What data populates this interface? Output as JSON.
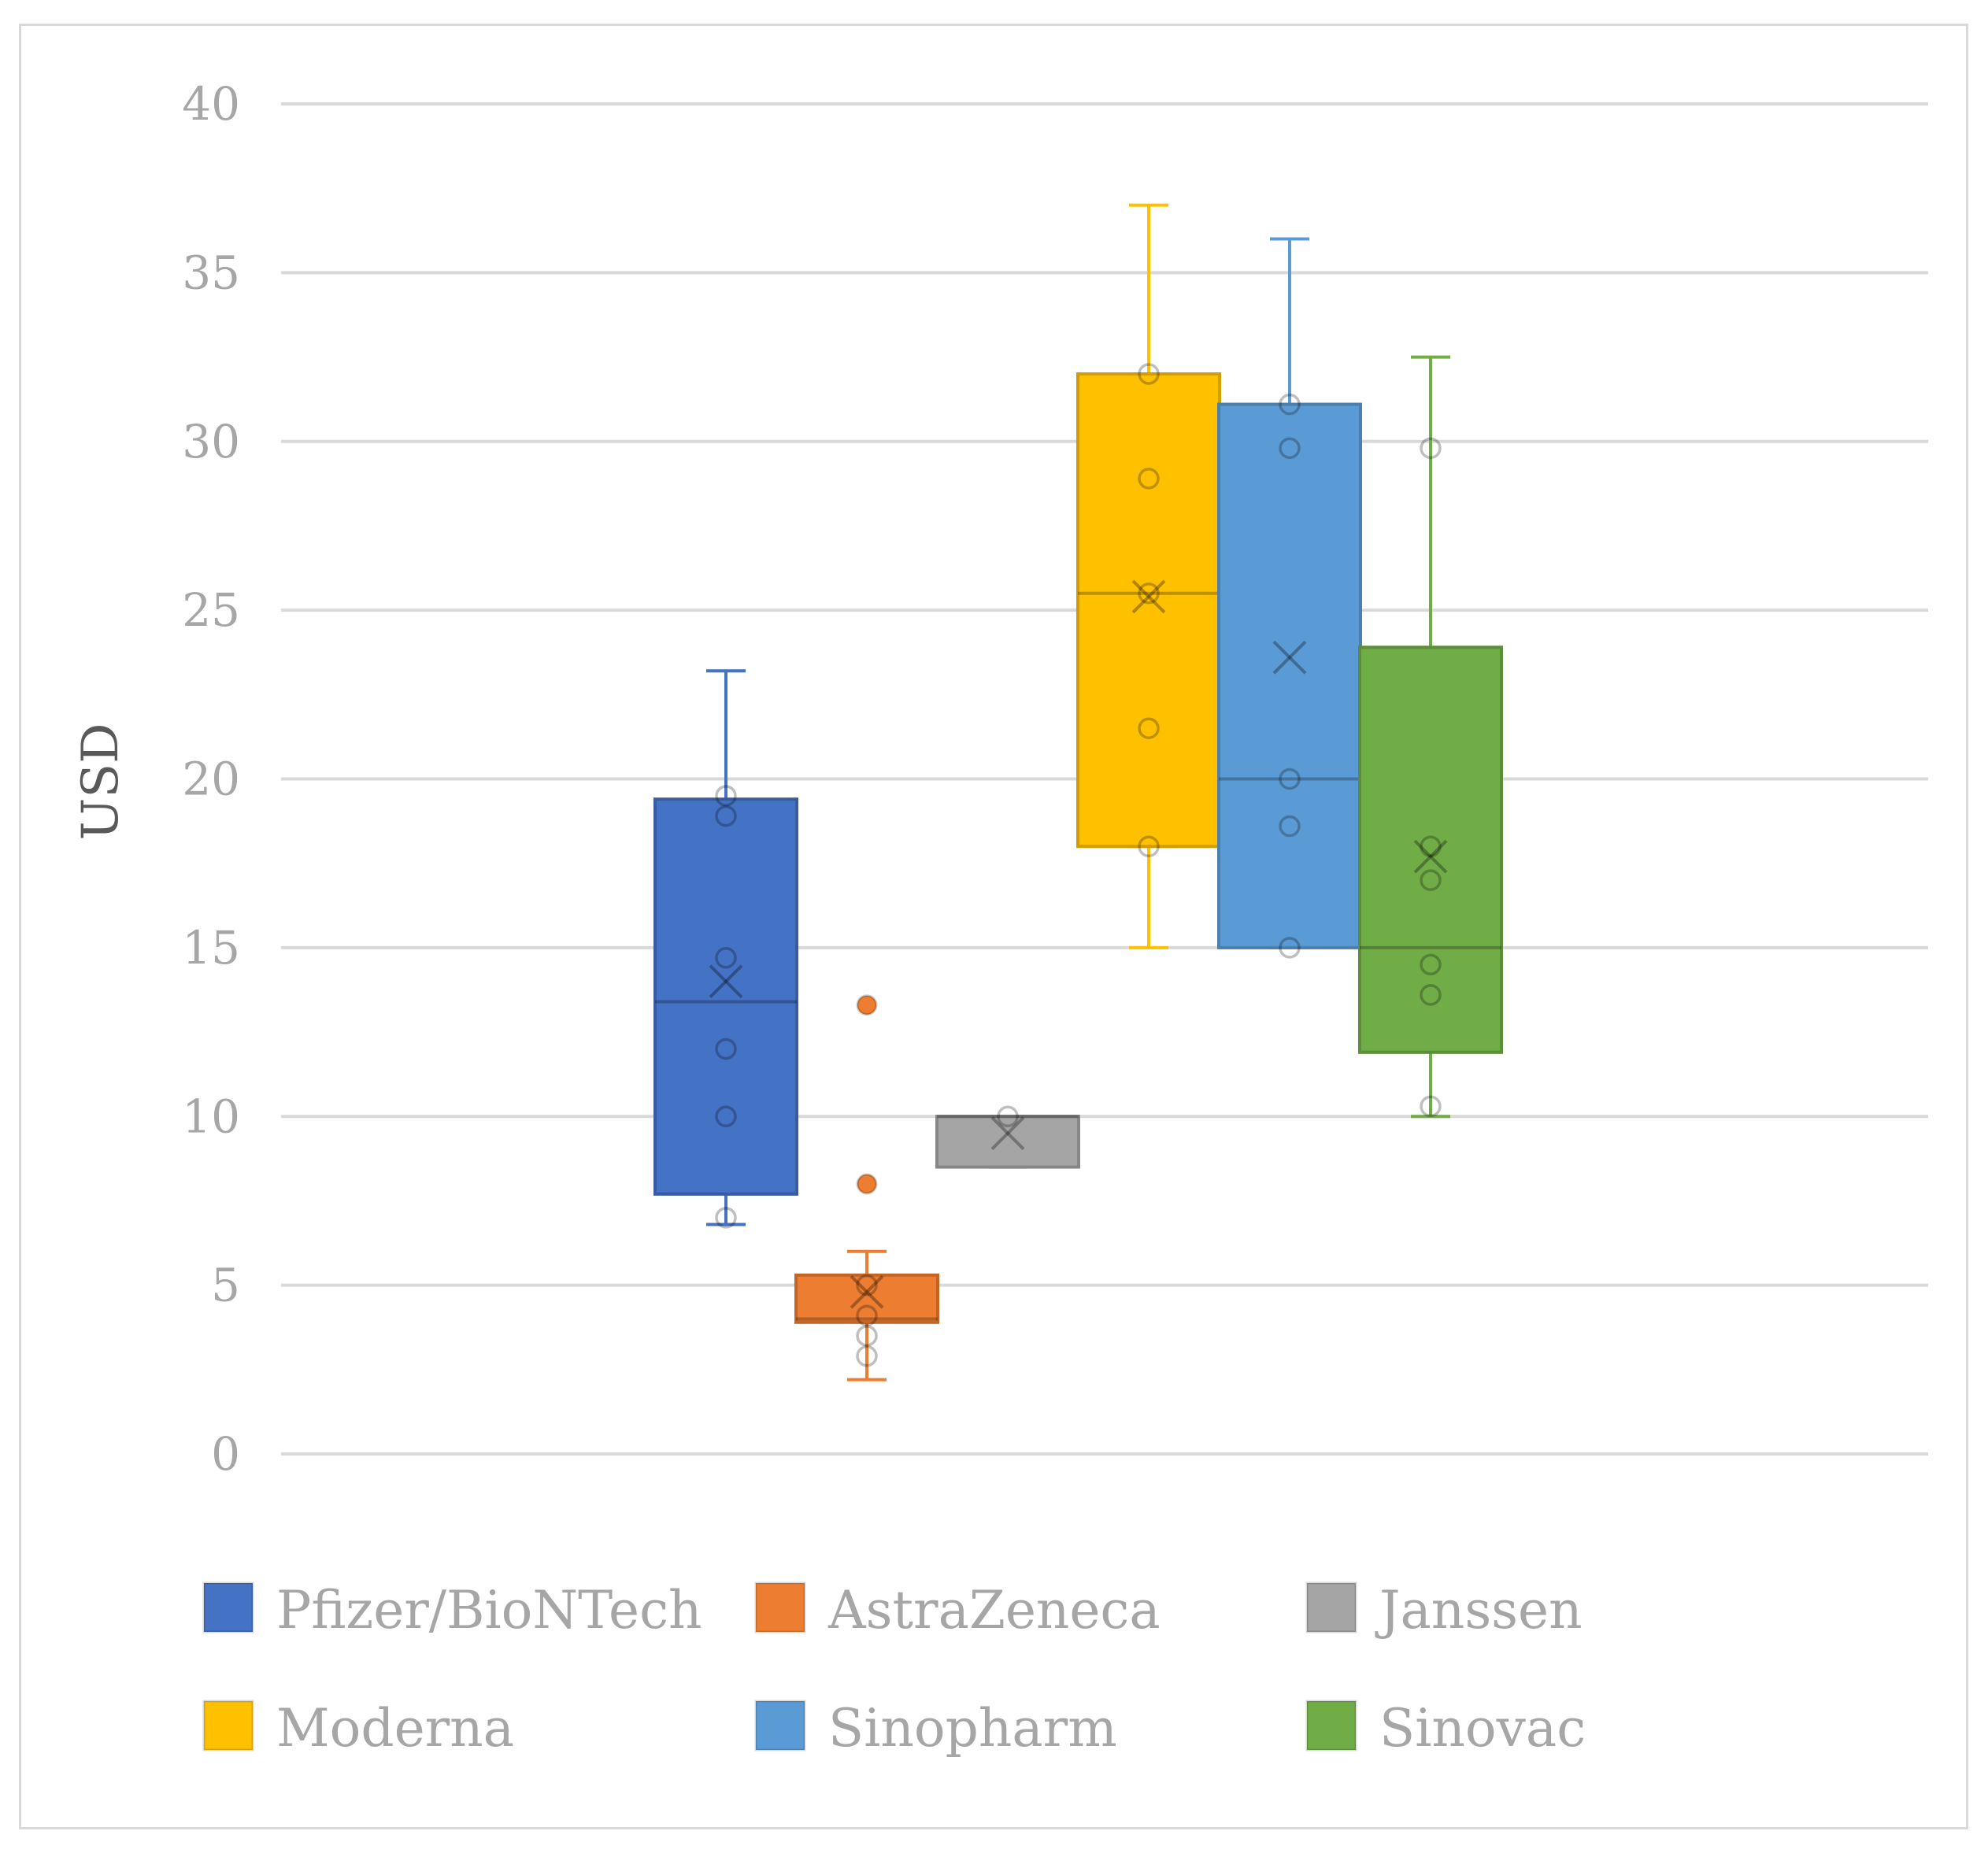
{
  "chart_data": {
    "type": "box",
    "title": "",
    "xlabel": "",
    "ylabel": "USD",
    "ylim": [
      0,
      40
    ],
    "yticks": [
      "0",
      "5",
      "10",
      "15",
      "20",
      "25",
      "30",
      "35",
      "40"
    ],
    "grid": true,
    "legend_position": "bottom",
    "series": [
      {
        "name": "Pfizer/BioNTech",
        "color": "#4472c4",
        "whisker_low": 6.8,
        "q1": 7.7,
        "median": 13.4,
        "q3": 19.4,
        "whisker_high": 23.2,
        "mean": 14.0,
        "points": [
          7.0,
          10.0,
          12.0,
          14.7,
          18.9,
          19.5
        ],
        "outliers": []
      },
      {
        "name": "AstraZeneca",
        "color": "#ed7d31",
        "whisker_low": 2.2,
        "q1": 3.9,
        "median": 4.0,
        "q3": 5.3,
        "whisker_high": 6.0,
        "mean": 4.8,
        "points": [
          2.9,
          3.5,
          4.1,
          5.0
        ],
        "outliers": [
          8.0,
          13.3
        ]
      },
      {
        "name": "Janssen",
        "color": "#a5a5a5",
        "whisker_low": 8.5,
        "q1": 8.5,
        "median": 10.0,
        "q3": 10.0,
        "whisker_high": 10.0,
        "mean": 9.5,
        "points": [
          10.0
        ],
        "outliers": []
      },
      {
        "name": "Moderna",
        "color": "#ffc000",
        "whisker_low": 15.0,
        "q1": 18.0,
        "median": 25.5,
        "q3": 32.0,
        "whisker_high": 37.0,
        "mean": 25.4,
        "points": [
          18.0,
          21.5,
          25.5,
          28.9,
          32.0
        ],
        "outliers": []
      },
      {
        "name": "Sinopharm",
        "color": "#5b9bd5",
        "whisker_low": 15.0,
        "q1": 15.0,
        "median": 20.0,
        "q3": 31.1,
        "whisker_high": 36.0,
        "mean": 23.6,
        "points": [
          15.0,
          18.6,
          20.0,
          29.8,
          31.1
        ],
        "outliers": []
      },
      {
        "name": "Sinovac",
        "color": "#70ad47",
        "whisker_low": 10.0,
        "q1": 11.9,
        "median": 15.0,
        "q3": 23.9,
        "whisker_high": 32.5,
        "mean": 17.7,
        "points": [
          10.3,
          13.6,
          14.5,
          17.0,
          18.0,
          29.8
        ],
        "outliers": []
      }
    ]
  }
}
